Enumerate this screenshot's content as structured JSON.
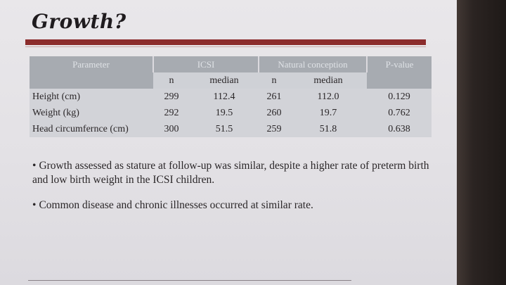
{
  "slide": {
    "title": "Growth?"
  },
  "table": {
    "header": {
      "parameter": "Parameter",
      "icsi": "ICSI",
      "natural": "Natural conception",
      "pvalue": "P-value"
    },
    "subheader": {
      "n1": "n",
      "median1": "median",
      "n2": "n",
      "median2": "median"
    },
    "rows": [
      {
        "label": "Height (cm)",
        "n_icsi": "299",
        "median_icsi": "112.4",
        "n_nat": "261",
        "median_nat": "112.0",
        "p": "0.129"
      },
      {
        "label": "Weight (kg)",
        "n_icsi": "292",
        "median_icsi": "19.5",
        "n_nat": "260",
        "median_nat": "19.7",
        "p": "0.762"
      },
      {
        "label": "Head circumfernce (cm)",
        "n_icsi": "300",
        "median_icsi": "51.5",
        "n_nat": "259",
        "median_nat": "51.8",
        "p": "0.638"
      }
    ]
  },
  "bullets": [
    "Growth assessed as stature at follow-up was similar, despite a higher rate of preterm birth and low birth weight in the ICSI children.",
    "Common disease and chronic illnesses occurred at similar rate."
  ]
}
